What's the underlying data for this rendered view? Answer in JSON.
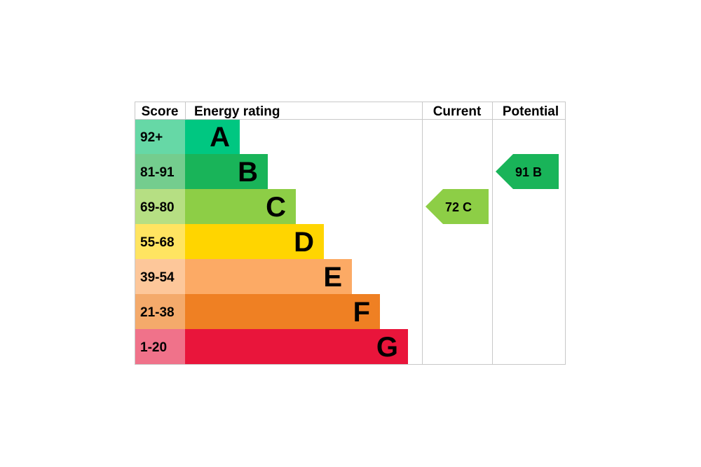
{
  "chart_data": {
    "type": "bar",
    "headers": {
      "score": "Score",
      "rating": "Energy rating",
      "current": "Current",
      "potential": "Potential"
    },
    "bands": [
      {
        "letter": "A",
        "range": "92+",
        "color": "#00c781",
        "score_bg": "#66d8a6"
      },
      {
        "letter": "B",
        "range": "81-91",
        "color": "#19b459",
        "score_bg": "#74cd8e"
      },
      {
        "letter": "C",
        "range": "69-80",
        "color": "#8dce46",
        "score_bg": "#b6df83"
      },
      {
        "letter": "D",
        "range": "55-68",
        "color": "#ffd500",
        "score_bg": "#ffe461"
      },
      {
        "letter": "E",
        "range": "39-54",
        "color": "#fcaa65",
        "score_bg": "#fdc79a"
      },
      {
        "letter": "F",
        "range": "21-38",
        "color": "#ef8023",
        "score_bg": "#f4aa6b"
      },
      {
        "letter": "G",
        "range": "1-20",
        "color": "#e9153b",
        "score_bg": "#f0728a"
      }
    ],
    "current": {
      "value": 72,
      "letter": "C",
      "color": "#8dce46",
      "label": "72  C"
    },
    "potential": {
      "value": 91,
      "letter": "B",
      "color": "#19b459",
      "label": "91  B"
    }
  }
}
